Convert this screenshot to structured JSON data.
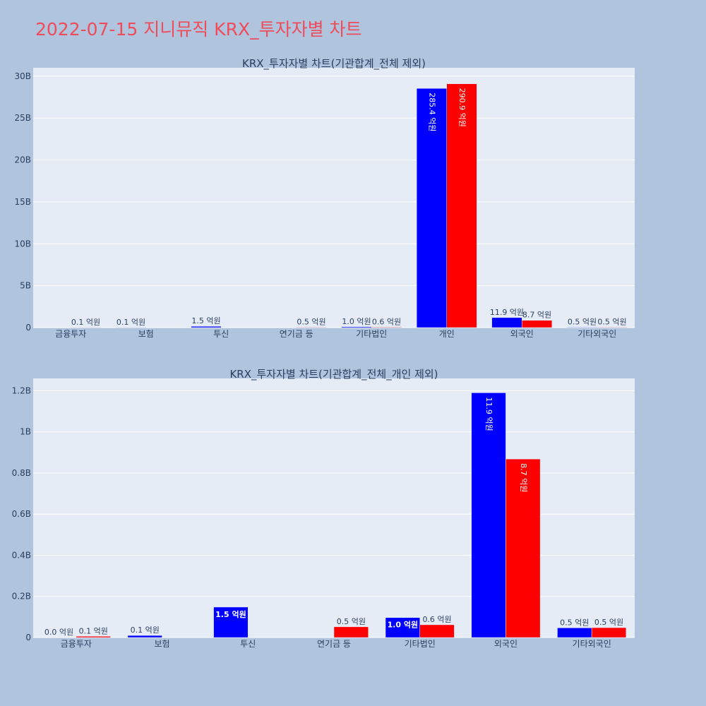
{
  "page_title": "2022-07-15 지니뮤직 KRX_투자자별 차트",
  "colors": {
    "sell": "#0000ff",
    "buy": "#ff0000",
    "plot_bg": "#e5ecf6",
    "paper_bg": "#b0c4de",
    "title": "#ef4c5b"
  },
  "chart_data": [
    {
      "type": "bar",
      "title": "KRX_투자자별 차트(기관합계_전체 제외)",
      "categories": [
        "금융투자",
        "보험",
        "투신",
        "연기금 등",
        "기타법인",
        "개인",
        "외국인",
        "기타외국인"
      ],
      "series": [
        {
          "values": [
            0.0,
            0.01,
            0.15,
            0.0,
            0.1,
            28.54,
            1.19,
            0.05
          ],
          "labels": [
            "",
            "0.1 억원",
            "1.5 억원",
            "",
            "1.0 억원",
            "285.4 억원",
            "11.9 억원",
            "0.5 억원"
          ]
        },
        {
          "values": [
            0.01,
            0.0,
            0.0,
            0.05,
            0.06,
            29.09,
            0.87,
            0.05
          ],
          "labels": [
            "0.1 억원",
            "",
            "",
            "0.5 억원",
            "0.6 억원",
            "290.9 억원",
            "8.7 억원",
            "0.5 억원"
          ]
        }
      ],
      "ylim": [
        0,
        31
      ],
      "yticks": [
        0,
        5,
        10,
        15,
        20,
        25,
        30
      ],
      "ytick_labels": [
        "0",
        "5B",
        "10B",
        "15B",
        "20B",
        "25B",
        "30B"
      ],
      "grid": true
    },
    {
      "type": "bar",
      "title": "KRX_투자자별 차트(기관합계_전체_개인 제외)",
      "categories": [
        "금융투자",
        "보험",
        "투신",
        "연기금 등",
        "기타법인",
        "외국인",
        "기타외국인"
      ],
      "series": [
        {
          "values": [
            0.0,
            0.01,
            0.148,
            0.0,
            0.097,
            1.19,
            0.047
          ],
          "labels": [
            "0.0 억원",
            "0.1 억원",
            "1.5 억원",
            "",
            "1.0 억원",
            "11.9 억원",
            "0.5 억원"
          ]
        },
        {
          "values": [
            0.006,
            0.0,
            0.0,
            0.052,
            0.062,
            0.868,
            0.048
          ],
          "labels": [
            "0.1 억원",
            "",
            "",
            "0.5 억원",
            "0.6 억원",
            "8.7 억원",
            "0.5 억원"
          ]
        }
      ],
      "ylim": [
        0,
        1.26
      ],
      "yticks": [
        0,
        0.2,
        0.4,
        0.6,
        0.8,
        1.0,
        1.2
      ],
      "ytick_labels": [
        "0",
        "0.2B",
        "0.4B",
        "0.6B",
        "0.8B",
        "1B",
        "1.2B"
      ],
      "grid": true
    }
  ]
}
